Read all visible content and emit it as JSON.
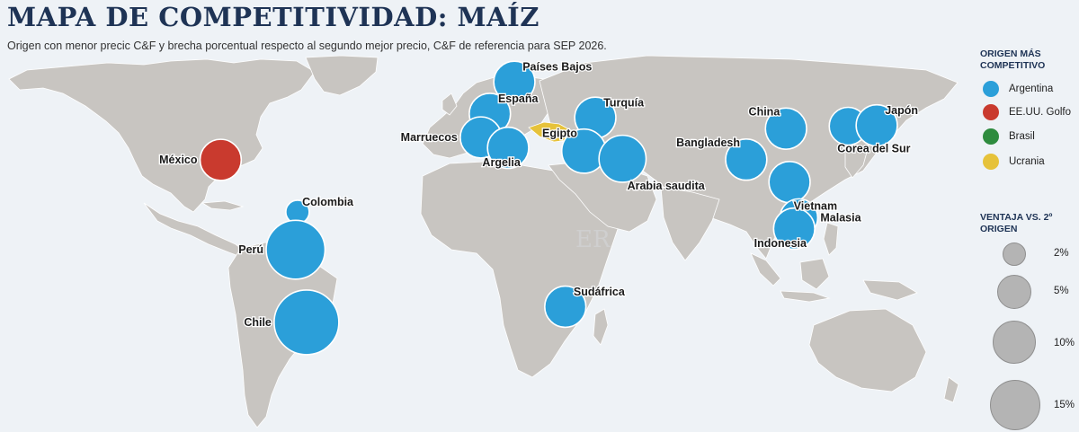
{
  "title": "MAPA DE COMPETITIVIDAD: MAÍZ",
  "subtitle": "Origen con menor precic C&F y brecha porcentual respecto al segundo mejor precio, C&F de referencia para SEP 2026.",
  "watermark": "ER",
  "colors": {
    "argentina": "#2b9fd9",
    "eeuu_golfo": "#c93a2e",
    "brasil": "#2e8b3e",
    "ucrania": "#e6c23a",
    "land": "#c8c5c1",
    "sea": "#eef2f6",
    "title": "#1e3355"
  },
  "legend_origin": {
    "heading": "ORIGEN MÁS COMPETITIVO",
    "items": [
      {
        "label": "Argentina",
        "color_key": "argentina"
      },
      {
        "label": "EE.UU. Golfo",
        "color_key": "eeuu_golfo"
      },
      {
        "label": "Brasil",
        "color_key": "brasil"
      },
      {
        "label": "Ucrania",
        "color_key": "ucrania"
      }
    ]
  },
  "legend_size": {
    "heading": "VENTAJA VS. 2º ORIGEN",
    "items": [
      {
        "label": "2%",
        "value": 2
      },
      {
        "label": "5%",
        "value": 5
      },
      {
        "label": "10%",
        "value": 10
      },
      {
        "label": "15%",
        "value": 15
      }
    ]
  },
  "markets": [
    {
      "name": "Países Bajos",
      "lon": 5.3,
      "lat": 52.1,
      "origin": "argentina",
      "advantage": 5
    },
    {
      "name": "España",
      "lon": -3.7,
      "lat": 40.4,
      "origin": "argentina",
      "advantage": 5
    },
    {
      "name": "Turquía",
      "lon": 35.0,
      "lat": 39.0,
      "origin": "argentina",
      "advantage": 5
    },
    {
      "name": "Marruecos",
      "lon": -7.0,
      "lat": 31.8,
      "origin": "argentina",
      "advantage": 5
    },
    {
      "name": "Argelia",
      "lon": 3.0,
      "lat": 28.0,
      "origin": "argentina",
      "advantage": 5
    },
    {
      "name": "Egipto",
      "lon": 30.8,
      "lat": 26.8,
      "origin": "argentina",
      "advantage": 6
    },
    {
      "name": "Arabia saudita",
      "lon": 45.0,
      "lat": 24.0,
      "origin": "argentina",
      "advantage": 7
    },
    {
      "name": "México",
      "lon": -102.5,
      "lat": 23.6,
      "origin": "eeuu_golfo",
      "advantage": 5
    },
    {
      "name": "Colombia",
      "lon": -74.3,
      "lat": 4.6,
      "origin": "argentina",
      "advantage": 1
    },
    {
      "name": "Perú",
      "lon": -75.0,
      "lat": -9.2,
      "origin": "argentina",
      "advantage": 12
    },
    {
      "name": "Chile",
      "lon": -71.0,
      "lat": -35.7,
      "origin": "argentina",
      "advantage": 15
    },
    {
      "name": "Sudáfrica",
      "lon": 24.0,
      "lat": -30.0,
      "origin": "argentina",
      "advantage": 5
    },
    {
      "name": "Bangladesh",
      "lon": 90.4,
      "lat": 23.7,
      "origin": "argentina",
      "advantage": 5
    },
    {
      "name": "China",
      "lon": 105.0,
      "lat": 35.0,
      "origin": "argentina",
      "advantage": 5
    },
    {
      "name": "Corea del Sur",
      "lon": 127.8,
      "lat": 35.9,
      "origin": "argentina",
      "advantage": 4
    },
    {
      "name": "Japón",
      "lon": 138.3,
      "lat": 36.2,
      "origin": "argentina",
      "advantage": 5
    },
    {
      "name": "Vietnam",
      "lon": 106.3,
      "lat": 15.5,
      "origin": "argentina",
      "advantage": 5
    },
    {
      "name": "Malasia",
      "lon": 109.7,
      "lat": 2.5,
      "origin": "argentina",
      "advantage": 4
    },
    {
      "name": "Indonesia",
      "lon": 108.0,
      "lat": -1.5,
      "origin": "argentina",
      "advantage": 5
    }
  ]
}
